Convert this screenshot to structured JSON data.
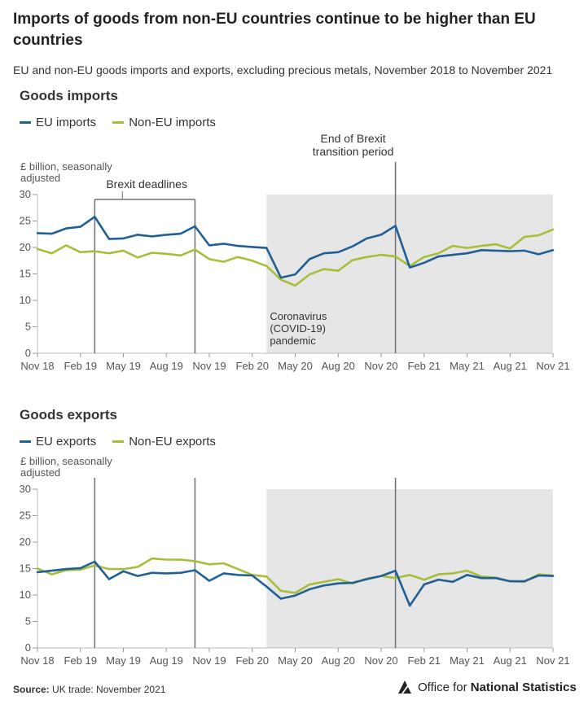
{
  "title": "Imports of goods from non-EU countries continue to be higher than EU countries",
  "subtitle": "EU and non-EU goods imports and exports, excluding precious metals, November 2018 to November 2021",
  "source": {
    "label": "Source:",
    "text": "UK trade: November 2021"
  },
  "logo": {
    "prefix": "Office for ",
    "bold": "National Statistics"
  },
  "colors": {
    "eu": "#206095",
    "noneu": "#a8bd3a",
    "shade": "#e6e6e6",
    "refline": "#707070"
  },
  "x_ticks": [
    "Nov 18",
    "Feb 19",
    "May 19",
    "Aug 19",
    "Nov 19",
    "Feb 20",
    "May 20",
    "Aug 20",
    "Nov 20",
    "Feb 21",
    "May 21",
    "Aug 21",
    "Nov 21"
  ],
  "chart_data": [
    {
      "type": "line",
      "title": "Goods imports",
      "ylabel": "£ billion, seasonally adjusted",
      "ylim": [
        0,
        30
      ],
      "yticks": [
        0,
        5,
        10,
        15,
        20,
        25,
        30
      ],
      "grid": false,
      "legend": "top-left",
      "x": [
        "Nov 18",
        "Dec 18",
        "Jan 19",
        "Feb 19",
        "Mar 19",
        "Apr 19",
        "May 19",
        "Jun 19",
        "Jul 19",
        "Aug 19",
        "Sep 19",
        "Oct 19",
        "Nov 19",
        "Dec 19",
        "Jan 20",
        "Feb 20",
        "Mar 20",
        "Apr 20",
        "May 20",
        "Jun 20",
        "Jul 20",
        "Aug 20",
        "Sep 20",
        "Oct 20",
        "Nov 20",
        "Dec 20",
        "Jan 21",
        "Feb 21",
        "Mar 21",
        "Apr 21",
        "May 21",
        "Jun 21",
        "Jul 21",
        "Aug 21",
        "Sep 21",
        "Oct 21",
        "Nov 21"
      ],
      "series": [
        {
          "name": "EU imports",
          "color": "eu",
          "values": [
            22.7,
            22.6,
            23.6,
            23.9,
            25.8,
            21.6,
            21.7,
            22.4,
            22.1,
            22.4,
            22.6,
            24.0,
            20.4,
            20.7,
            20.3,
            20.1,
            19.9,
            14.3,
            14.9,
            17.8,
            18.9,
            19.1,
            20.2,
            21.7,
            22.4,
            24.1,
            16.2,
            17.1,
            18.3,
            18.6,
            18.9,
            19.5,
            19.4,
            19.3,
            19.4,
            18.7,
            19.5
          ]
        },
        {
          "name": "Non-EU imports",
          "color": "noneu",
          "values": [
            19.7,
            18.9,
            20.4,
            19.1,
            19.3,
            18.9,
            19.4,
            18.1,
            19.0,
            18.8,
            18.5,
            19.6,
            17.8,
            17.3,
            18.2,
            17.5,
            16.5,
            13.9,
            12.8,
            14.9,
            15.9,
            15.6,
            17.6,
            18.2,
            18.6,
            18.3,
            16.5,
            18.2,
            18.9,
            20.3,
            19.9,
            20.3,
            20.6,
            19.8,
            22.0,
            22.3,
            23.4
          ]
        }
      ],
      "annotations": [
        {
          "type": "bracket",
          "from": "Mar 19",
          "to": "Oct 19",
          "label": "Brexit deadlines"
        },
        {
          "type": "shade",
          "from": "Mar 20",
          "to": "Nov 21",
          "label": "Coronavirus (COVID-19) pandemic",
          "label_lines": [
            "Coronavirus",
            "(COVID-19)",
            "pandemic"
          ]
        },
        {
          "type": "vline",
          "at": "Dec 20",
          "label": "End of Brexit transition period",
          "label_lines": [
            "End of Brexit",
            "transition period"
          ]
        }
      ]
    },
    {
      "type": "line",
      "title": "Goods exports",
      "ylabel": "£ billion, seasonally adjusted",
      "ylim": [
        0,
        30
      ],
      "yticks": [
        0,
        5,
        10,
        15,
        20,
        25,
        30
      ],
      "grid": false,
      "legend": "top-left",
      "x": [
        "Nov 18",
        "Dec 18",
        "Jan 19",
        "Feb 19",
        "Mar 19",
        "Apr 19",
        "May 19",
        "Jun 19",
        "Jul 19",
        "Aug 19",
        "Sep 19",
        "Oct 19",
        "Nov 19",
        "Dec 19",
        "Jan 20",
        "Feb 20",
        "Mar 20",
        "Apr 20",
        "May 20",
        "Jun 20",
        "Jul 20",
        "Aug 20",
        "Sep 20",
        "Oct 20",
        "Nov 20",
        "Dec 20",
        "Jan 21",
        "Feb 21",
        "Mar 21",
        "Apr 21",
        "May 21",
        "Jun 21",
        "Jul 21",
        "Aug 21",
        "Sep 21",
        "Oct 21",
        "Nov 21"
      ],
      "series": [
        {
          "name": "EU exports",
          "color": "eu",
          "values": [
            14.3,
            14.6,
            14.9,
            15.1,
            16.3,
            13.0,
            14.5,
            13.6,
            14.2,
            14.1,
            14.2,
            14.7,
            12.7,
            14.1,
            13.8,
            13.7,
            11.6,
            9.3,
            9.9,
            11.1,
            11.8,
            12.2,
            12.3,
            13.0,
            13.6,
            14.6,
            8.0,
            12.0,
            12.9,
            12.5,
            13.8,
            13.2,
            13.2,
            12.6,
            12.6,
            13.7,
            13.6
          ]
        },
        {
          "name": "Non-EU exports",
          "color": "noneu",
          "values": [
            15.0,
            13.9,
            14.7,
            14.8,
            15.6,
            14.9,
            14.9,
            15.3,
            16.9,
            16.7,
            16.7,
            16.4,
            15.8,
            16.0,
            14.9,
            13.8,
            13.5,
            10.8,
            10.4,
            12.0,
            12.5,
            13.0,
            12.2,
            13.1,
            13.6,
            13.2,
            13.8,
            12.9,
            13.9,
            14.1,
            14.6,
            13.5,
            13.3,
            12.6,
            12.5,
            13.9,
            13.7
          ]
        }
      ],
      "annotations": [
        {
          "type": "vline",
          "at": "Mar 19"
        },
        {
          "type": "vline",
          "at": "Oct 19"
        },
        {
          "type": "shade",
          "from": "Mar 20",
          "to": "Nov 21"
        },
        {
          "type": "vline",
          "at": "Dec 20"
        }
      ]
    }
  ]
}
